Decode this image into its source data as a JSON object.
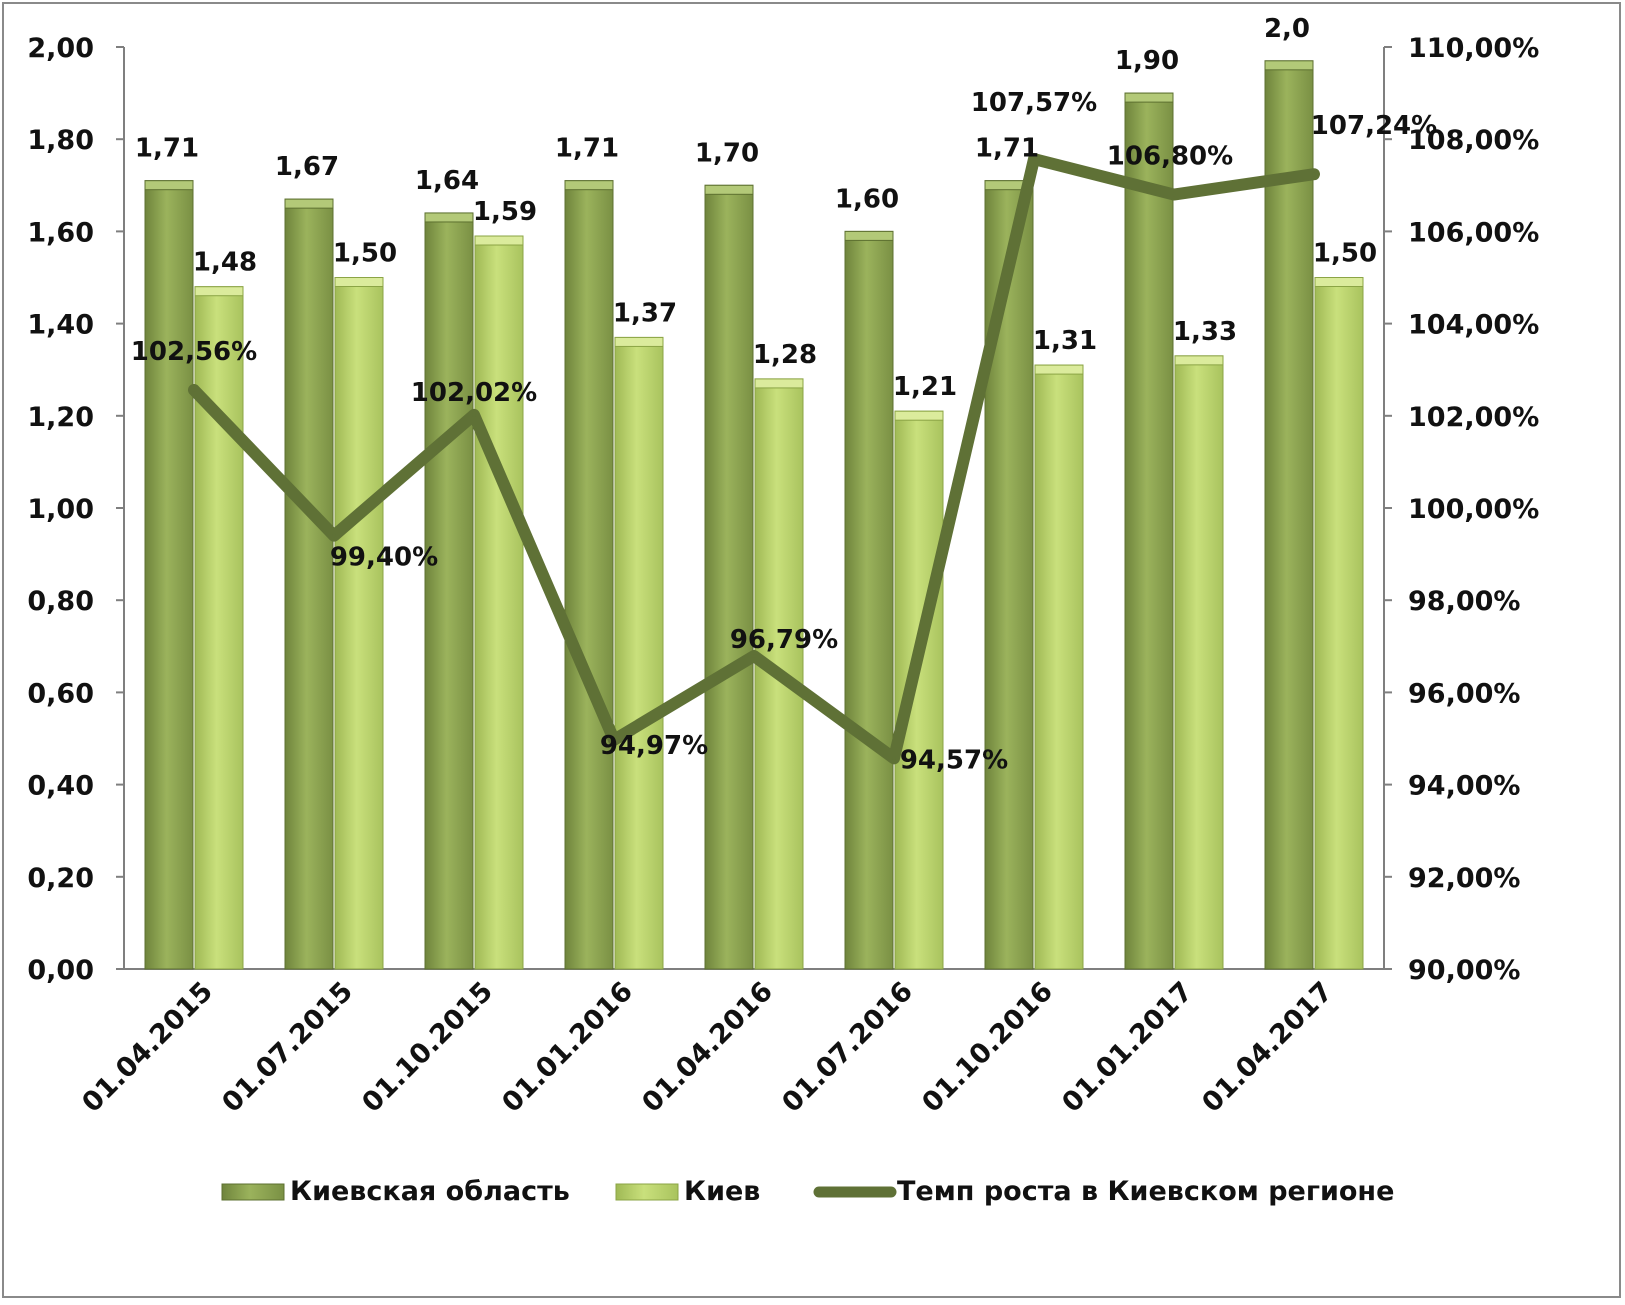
{
  "chart_data": {
    "type": "bar",
    "categories": [
      "01.04.2015",
      "01.07.2015",
      "01.10.2015",
      "01.01.2016",
      "01.04.2016",
      "01.07.2016",
      "01.10.2016",
      "01.01.2017",
      "01.04.2017"
    ],
    "series": [
      {
        "name": "Киевская область",
        "type": "bar",
        "axis": "left",
        "values": [
          1.71,
          1.67,
          1.64,
          1.71,
          1.7,
          1.6,
          1.71,
          1.9,
          1.97
        ],
        "labels": [
          "1,71",
          "1,67",
          "1,64",
          "1,71",
          "1,70",
          "1,60",
          "1,71",
          "1,90",
          "2,0"
        ],
        "color": "#8fa654"
      },
      {
        "name": "Киев",
        "type": "bar",
        "axis": "left",
        "values": [
          1.48,
          1.5,
          1.59,
          1.37,
          1.28,
          1.21,
          1.31,
          1.33,
          1.5
        ],
        "labels": [
          "1,48",
          "1,50",
          "1,59",
          "1,37",
          "1,28",
          "1,21",
          "1,31",
          "1,33",
          "1,50"
        ],
        "color": "#b9d36b"
      },
      {
        "name": "Темп роста в Киевском регионе",
        "type": "line",
        "axis": "right",
        "values": [
          102.56,
          99.4,
          102.02,
          94.97,
          96.79,
          94.57,
          107.57,
          106.8,
          107.24
        ],
        "labels": [
          "102,56%",
          "99,40%",
          "102,02%",
          "94,97%",
          "96,79%",
          "94,57%",
          "107,57%",
          "106,80%",
          "107,24%"
        ],
        "color": "#5f7136"
      }
    ],
    "y_left": {
      "range": [
        0,
        2
      ],
      "ticks": [
        0,
        0.2,
        0.4,
        0.6,
        0.8,
        1.0,
        1.2,
        1.4,
        1.6,
        1.8,
        2.0
      ],
      "tick_labels": [
        "0,00",
        "0,20",
        "0,40",
        "0,60",
        "0,80",
        "1,00",
        "1,20",
        "1,40",
        "1,60",
        "1,80",
        "2,00"
      ]
    },
    "y_right": {
      "range": [
        90,
        110
      ],
      "ticks": [
        90,
        92,
        94,
        96,
        98,
        100,
        102,
        104,
        106,
        108,
        110
      ],
      "tick_labels": [
        "90,00%",
        "92,00%",
        "94,00%",
        "96,00%",
        "98,00%",
        "100,00%",
        "102,00%",
        "104,00%",
        "106,00%",
        "108,00%",
        "110,00%"
      ]
    },
    "grid": false,
    "legend_position": "bottom"
  }
}
